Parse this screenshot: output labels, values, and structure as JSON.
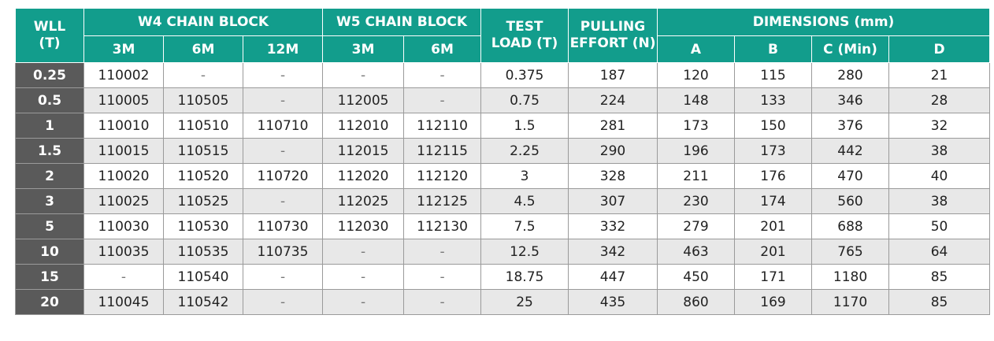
{
  "header": {
    "wll": "WLL",
    "wll_unit": "(T)",
    "w4": "W4 CHAIN BLOCK",
    "w5": "W5 CHAIN BLOCK",
    "test_load_1": "TEST",
    "test_load_2": "LOAD (T)",
    "pulling_1": "PULLING",
    "pulling_2": "EFFORT (N)",
    "dimensions": "DIMENSIONS (mm)",
    "w4_3m": "3M",
    "w4_6m": "6M",
    "w4_12m": "12M",
    "w5_3m": "3M",
    "w5_6m": "6M",
    "dim_a": "A",
    "dim_b": "B",
    "dim_c": "C (Min)",
    "dim_d": "D"
  },
  "rows": [
    [
      "0.25",
      "110002",
      "-",
      "-",
      "-",
      "-",
      "0.375",
      "187",
      "120",
      "115",
      "280",
      "21"
    ],
    [
      "0.5",
      "110005",
      "110505",
      "-",
      "112005",
      "-",
      "0.75",
      "224",
      "148",
      "133",
      "346",
      "28"
    ],
    [
      "1",
      "110010",
      "110510",
      "110710",
      "112010",
      "112110",
      "1.5",
      "281",
      "173",
      "150",
      "376",
      "32"
    ],
    [
      "1.5",
      "110015",
      "110515",
      "-",
      "112015",
      "112115",
      "2.25",
      "290",
      "196",
      "173",
      "442",
      "38"
    ],
    [
      "2",
      "110020",
      "110520",
      "110720",
      "112020",
      "112120",
      "3",
      "328",
      "211",
      "176",
      "470",
      "40"
    ],
    [
      "3",
      "110025",
      "110525",
      "-",
      "112025",
      "112125",
      "4.5",
      "307",
      "230",
      "174",
      "560",
      "38"
    ],
    [
      "5",
      "110030",
      "110530",
      "110730",
      "112030",
      "112130",
      "7.5",
      "332",
      "279",
      "201",
      "688",
      "50"
    ],
    [
      "10",
      "110035",
      "110535",
      "110735",
      "-",
      "-",
      "12.5",
      "342",
      "463",
      "201",
      "765",
      "64"
    ],
    [
      "15",
      "-",
      "110540",
      "-",
      "-",
      "-",
      "18.75",
      "447",
      "450",
      "171",
      "1180",
      "85"
    ],
    [
      "20",
      "110045",
      "110542",
      "-",
      "-",
      "-",
      "25",
      "435",
      "860",
      "169",
      "1170",
      "85"
    ]
  ],
  "colors": {
    "header_bg": "#129d8c",
    "wll_bg": "#5a5a5a",
    "stripe_bg": "#e8e8e8"
  }
}
